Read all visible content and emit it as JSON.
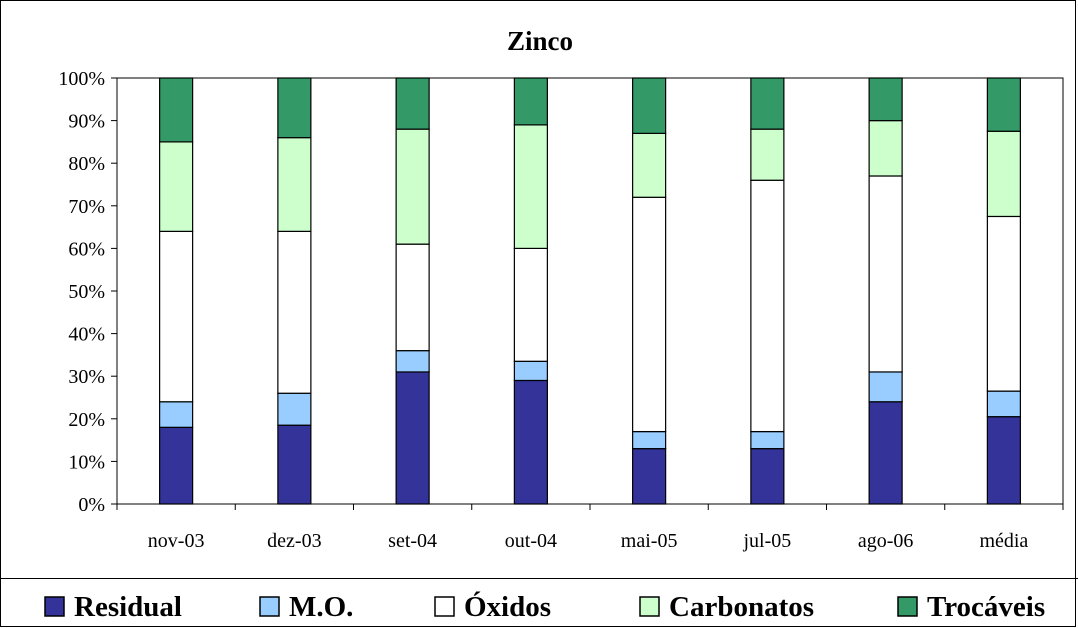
{
  "chart_data": {
    "type": "bar",
    "stacked": "percent",
    "title": "Zinco",
    "xlabel": "",
    "ylabel": "",
    "ylim": [
      0,
      100
    ],
    "yticks": [
      "0%",
      "10%",
      "20%",
      "30%",
      "40%",
      "50%",
      "60%",
      "70%",
      "80%",
      "90%",
      "100%"
    ],
    "categories": [
      "nov-03",
      "dez-03",
      "set-04",
      "out-04",
      "mai-05",
      "jul-05",
      "ago-06",
      "média"
    ],
    "series": [
      {
        "name": "Residual",
        "color": "#333399",
        "values": [
          18,
          18.5,
          31,
          29,
          13,
          13,
          24,
          20.5
        ]
      },
      {
        "name": "M.O.",
        "color": "#99CCFF",
        "values": [
          6,
          7.5,
          5,
          4.5,
          4,
          4,
          7,
          6
        ]
      },
      {
        "name": "Óxidos",
        "color": "#FFFFFF",
        "values": [
          40,
          38,
          25,
          26.5,
          55,
          59,
          46,
          41
        ]
      },
      {
        "name": "Carbonatos",
        "color": "#CCFFCC",
        "values": [
          21,
          22,
          27,
          29,
          15,
          12,
          13,
          20
        ]
      },
      {
        "name": "Trocáveis",
        "color": "#339966",
        "values": [
          15,
          14,
          12,
          11,
          13,
          12,
          10,
          12.5
        ]
      }
    ],
    "grid": false,
    "legend_position": "bottom"
  }
}
